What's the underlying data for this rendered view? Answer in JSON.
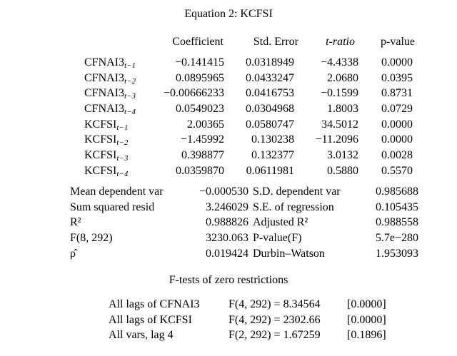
{
  "title": "Equation 2: KCFSI",
  "columns": [
    "Coefficient",
    "Std. Error",
    "t-ratio",
    "p-value"
  ],
  "rows": [
    {
      "var": "CFNAI3",
      "lag": "t−1",
      "coef": "−0.141415",
      "se": "0.0318949",
      "t": "−4.4338",
      "p": "0.0000"
    },
    {
      "var": "CFNAI3",
      "lag": "t−2",
      "coef": "0.0895965",
      "se": "0.0433247",
      "t": "2.0680",
      "p": "0.0395"
    },
    {
      "var": "CFNAI3",
      "lag": "t−3",
      "coef": "−0.00666233",
      "se": "0.0416753",
      "t": "−0.1599",
      "p": "0.8731"
    },
    {
      "var": "CFNAI3",
      "lag": "t−4",
      "coef": "0.0549023",
      "se": "0.0304968",
      "t": "1.8003",
      "p": "0.0729"
    },
    {
      "var": "KCFSI",
      "lag": "t−1",
      "coef": "2.00365",
      "se": "0.0580747",
      "t": "34.5012",
      "p": "0.0000"
    },
    {
      "var": "KCFSI",
      "lag": "t−2",
      "coef": "−1.45992",
      "se": "0.130238",
      "t": "−11.2096",
      "p": "0.0000"
    },
    {
      "var": "KCFSI",
      "lag": "t−3",
      "coef": "0.398877",
      "se": "0.132377",
      "t": "3.0132",
      "p": "0.0028"
    },
    {
      "var": "KCFSI",
      "lag": "t−4",
      "coef": "0.0359870",
      "se": "0.0611981",
      "t": "0.5880",
      "p": "0.5570"
    }
  ],
  "stats": [
    {
      "l1": "Mean dependent var",
      "v1": "−0.000530",
      "l2": "S.D. dependent var",
      "v2": "0.985688"
    },
    {
      "l1": "Sum squared resid",
      "v1": "3.246029",
      "l2": "S.E. of regression",
      "v2": "0.105435"
    },
    {
      "l1": "R²",
      "v1": "0.988826",
      "l2": "Adjusted R²",
      "v2": "0.988558"
    },
    {
      "l1": "F(8, 292)",
      "v1": "3230.063",
      "l2": "P-value(F)",
      "v2": "5.7e−280"
    },
    {
      "l1": "ρ̂",
      "v1": "0.019424",
      "l2": "Durbin–Watson",
      "v2": "1.953093"
    }
  ],
  "ftests_title": "F-tests of zero restrictions",
  "ftests": [
    {
      "label": "All lags of CFNAI3",
      "stat": "F(4, 292) = 8.34564",
      "p": "[0.0000]"
    },
    {
      "label": "All lags of KCFSI",
      "stat": "F(4, 292) = 2302.66",
      "p": "[0.0000]"
    },
    {
      "label": "All vars, lag 4",
      "stat": "F(2, 292) = 1.67259",
      "p": "[0.1896]"
    }
  ]
}
